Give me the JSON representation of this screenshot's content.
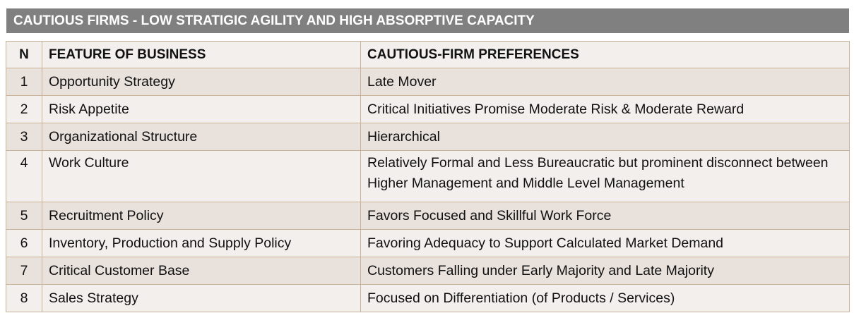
{
  "title": "CAUTIOUS FIRMS - LOW STRATIGIC AGILITY AND HIGH ABSORPTIVE CAPACITY",
  "headers": {
    "n": "N",
    "feature": "FEATURE OF BUSINESS",
    "preference": "CAUTIOUS-FIRM PREFERENCES"
  },
  "rows": [
    {
      "n": "1",
      "feature": "Opportunity Strategy",
      "preference": "Late Mover"
    },
    {
      "n": "2",
      "feature": "Risk Appetite",
      "preference": "Critical Initiatives Promise Moderate Risk & Moderate Reward"
    },
    {
      "n": "3",
      "feature": "Organizational Structure",
      "preference": "Hierarchical"
    },
    {
      "n": "4",
      "feature": "Work Culture",
      "preference": "Relatively Formal and Less Bureaucratic but prominent disconnect between Higher Management and Middle Level Management"
    },
    {
      "n": "5",
      "feature": "Recruitment Policy",
      "preference": "Favors Focused and Skillful Work Force"
    },
    {
      "n": "6",
      "feature": "Inventory, Production and Supply Policy",
      "preference": "Favoring Adequacy to Support Calculated Market Demand"
    },
    {
      "n": "7",
      "feature": "Critical Customer Base",
      "preference": "Customers Falling under Early Majority and Late Majority"
    },
    {
      "n": "8",
      "feature": "Sales Strategy",
      "preference": "Focused on Differentiation (of Products / Services)"
    }
  ],
  "colors": {
    "banner_bg": "#808080",
    "row_shaded": "#e8e1dc",
    "row_light": "#f2efed",
    "border": "#c9b49a"
  }
}
